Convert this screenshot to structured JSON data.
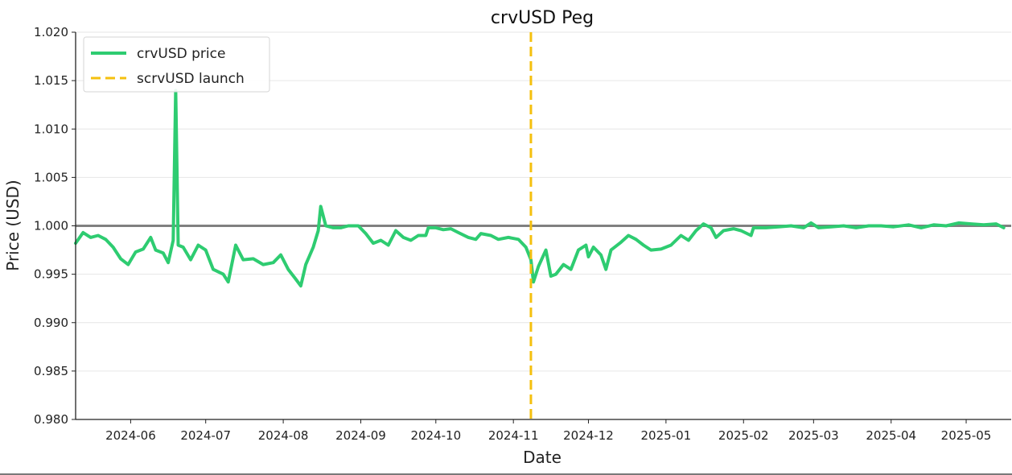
{
  "chart_data": {
    "type": "line",
    "title": "crvUSD Peg",
    "xlabel": "Date",
    "ylabel": "Price (USD)",
    "xlim": [
      "2024-05-10",
      "2025-05-19"
    ],
    "ylim": [
      0.98,
      1.02
    ],
    "x_ticks": [
      "2024-06",
      "2024-07",
      "2024-08",
      "2024-09",
      "2024-10",
      "2024-11",
      "2024-12",
      "2025-01",
      "2025-02",
      "2025-03",
      "2025-04",
      "2025-05"
    ],
    "y_ticks": [
      "0.980",
      "0.985",
      "0.990",
      "0.995",
      "1.000",
      "1.005",
      "1.010",
      "1.015",
      "1.020"
    ],
    "grid": "horizontal",
    "legend": "top-left",
    "peg_line": {
      "value": 1.0,
      "color": "#808080"
    },
    "launch_line": {
      "name": "scrvUSD launch",
      "date": "2024-11-08",
      "color": "#f5c00e",
      "style": "dashed"
    },
    "series": [
      {
        "name": "crvUSD price",
        "color": "#2ecc71",
        "points": [
          [
            "2024-05-10",
            0.9982
          ],
          [
            "2024-05-13",
            0.9993
          ],
          [
            "2024-05-16",
            0.9988
          ],
          [
            "2024-05-19",
            0.999
          ],
          [
            "2024-05-22",
            0.9986
          ],
          [
            "2024-05-25",
            0.9978
          ],
          [
            "2024-05-28",
            0.9966
          ],
          [
            "2024-05-31",
            0.996
          ],
          [
            "2024-06-03",
            0.9973
          ],
          [
            "2024-06-06",
            0.9976
          ],
          [
            "2024-06-09",
            0.9988
          ],
          [
            "2024-06-11",
            0.9975
          ],
          [
            "2024-06-14",
            0.9972
          ],
          [
            "2024-06-16",
            0.9962
          ],
          [
            "2024-06-18",
            0.9985
          ],
          [
            "2024-06-19",
            1.014
          ],
          [
            "2024-06-20",
            0.998
          ],
          [
            "2024-06-22",
            0.9978
          ],
          [
            "2024-06-25",
            0.9965
          ],
          [
            "2024-06-28",
            0.998
          ],
          [
            "2024-07-01",
            0.9975
          ],
          [
            "2024-07-04",
            0.9955
          ],
          [
            "2024-07-08",
            0.995
          ],
          [
            "2024-07-10",
            0.9942
          ],
          [
            "2024-07-13",
            0.998
          ],
          [
            "2024-07-16",
            0.9965
          ],
          [
            "2024-07-20",
            0.9966
          ],
          [
            "2024-07-24",
            0.996
          ],
          [
            "2024-07-28",
            0.9962
          ],
          [
            "2024-07-31",
            0.997
          ],
          [
            "2024-08-03",
            0.9955
          ],
          [
            "2024-08-06",
            0.9945
          ],
          [
            "2024-08-08",
            0.9938
          ],
          [
            "2024-08-10",
            0.996
          ],
          [
            "2024-08-13",
            0.9978
          ],
          [
            "2024-08-15",
            0.9995
          ],
          [
            "2024-08-16",
            1.002
          ],
          [
            "2024-08-18",
            1.0
          ],
          [
            "2024-08-21",
            0.9998
          ],
          [
            "2024-08-24",
            0.9998
          ],
          [
            "2024-08-27",
            1.0
          ],
          [
            "2024-08-31",
            1.0
          ],
          [
            "2024-09-03",
            0.9992
          ],
          [
            "2024-09-06",
            0.9982
          ],
          [
            "2024-09-09",
            0.9985
          ],
          [
            "2024-09-12",
            0.998
          ],
          [
            "2024-09-15",
            0.9995
          ],
          [
            "2024-09-18",
            0.9988
          ],
          [
            "2024-09-21",
            0.9985
          ],
          [
            "2024-09-24",
            0.999
          ],
          [
            "2024-09-27",
            0.999
          ],
          [
            "2024-09-28",
            0.9998
          ],
          [
            "2024-10-01",
            0.9998
          ],
          [
            "2024-10-04",
            0.9996
          ],
          [
            "2024-10-07",
            0.9997
          ],
          [
            "2024-10-10",
            0.9993
          ],
          [
            "2024-10-14",
            0.9988
          ],
          [
            "2024-10-17",
            0.9986
          ],
          [
            "2024-10-19",
            0.9992
          ],
          [
            "2024-10-23",
            0.999
          ],
          [
            "2024-10-26",
            0.9986
          ],
          [
            "2024-10-30",
            0.9988
          ],
          [
            "2024-11-03",
            0.9986
          ],
          [
            "2024-11-06",
            0.9978
          ],
          [
            "2024-11-08",
            0.9965
          ],
          [
            "2024-11-09",
            0.9942
          ],
          [
            "2024-11-11",
            0.9958
          ],
          [
            "2024-11-14",
            0.9975
          ],
          [
            "2024-11-16",
            0.9948
          ],
          [
            "2024-11-18",
            0.995
          ],
          [
            "2024-11-21",
            0.996
          ],
          [
            "2024-11-24",
            0.9955
          ],
          [
            "2024-11-27",
            0.9975
          ],
          [
            "2024-11-30",
            0.998
          ],
          [
            "2024-12-01",
            0.9968
          ],
          [
            "2024-12-03",
            0.9978
          ],
          [
            "2024-12-06",
            0.997
          ],
          [
            "2024-12-08",
            0.9955
          ],
          [
            "2024-12-10",
            0.9975
          ],
          [
            "2024-12-14",
            0.9983
          ],
          [
            "2024-12-17",
            0.999
          ],
          [
            "2024-12-20",
            0.9986
          ],
          [
            "2024-12-23",
            0.998
          ],
          [
            "2024-12-26",
            0.9975
          ],
          [
            "2024-12-30",
            0.9976
          ],
          [
            "2025-01-03",
            0.998
          ],
          [
            "2025-01-07",
            0.999
          ],
          [
            "2025-01-10",
            0.9985
          ],
          [
            "2025-01-13",
            0.9995
          ],
          [
            "2025-01-16",
            1.0002
          ],
          [
            "2025-01-19",
            0.9998
          ],
          [
            "2025-01-21",
            0.9988
          ],
          [
            "2025-01-24",
            0.9995
          ],
          [
            "2025-01-28",
            0.9997
          ],
          [
            "2025-01-31",
            0.9995
          ],
          [
            "2025-02-04",
            0.999
          ],
          [
            "2025-02-05",
            0.9998
          ],
          [
            "2025-02-10",
            0.9998
          ],
          [
            "2025-02-15",
            0.9999
          ],
          [
            "2025-02-20",
            1.0
          ],
          [
            "2025-02-25",
            0.9998
          ],
          [
            "2025-02-28",
            1.0003
          ],
          [
            "2025-03-03",
            0.9998
          ],
          [
            "2025-03-08",
            0.9999
          ],
          [
            "2025-03-13",
            1.0
          ],
          [
            "2025-03-18",
            0.9998
          ],
          [
            "2025-03-23",
            1.0
          ],
          [
            "2025-03-28",
            1.0
          ],
          [
            "2025-04-02",
            0.9999
          ],
          [
            "2025-04-08",
            1.0001
          ],
          [
            "2025-04-13",
            0.9998
          ],
          [
            "2025-04-18",
            1.0001
          ],
          [
            "2025-04-23",
            1.0
          ],
          [
            "2025-04-28",
            1.0003
          ],
          [
            "2025-05-03",
            1.0002
          ],
          [
            "2025-05-08",
            1.0001
          ],
          [
            "2025-05-13",
            1.0002
          ],
          [
            "2025-05-16",
            0.9998
          ]
        ]
      }
    ]
  }
}
